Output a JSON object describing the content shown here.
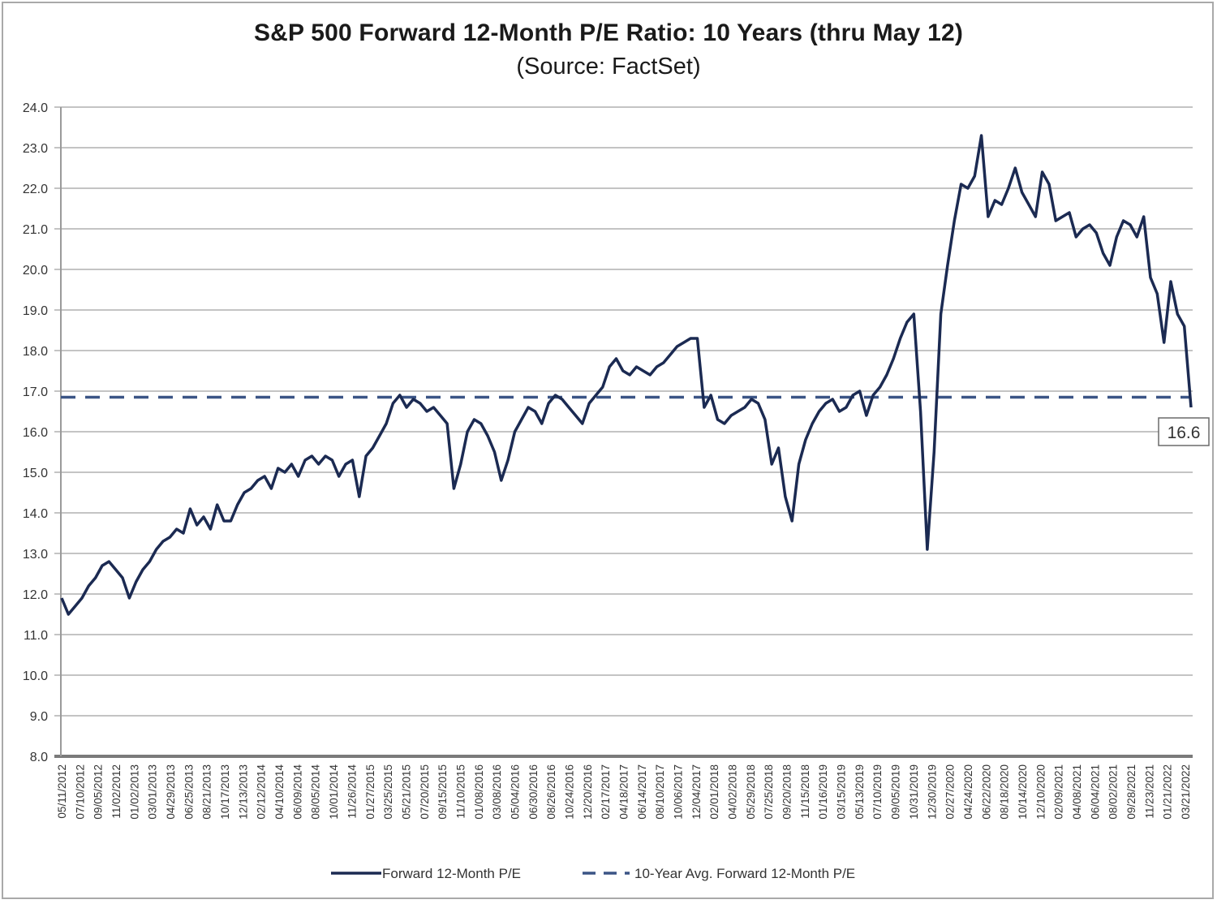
{
  "chart_data": {
    "type": "line",
    "title": "S&P 500 Forward 12-Month P/E Ratio: 10 Years (thru May 12)",
    "subtitle": "(Source: FactSet)",
    "xlabel": "",
    "ylabel": "",
    "ylim": [
      8.0,
      24.0
    ],
    "ytick_step": 1.0,
    "yticks": [
      "24.0",
      "23.0",
      "22.0",
      "21.0",
      "20.0",
      "19.0",
      "18.0",
      "17.0",
      "16.0",
      "15.0",
      "14.0",
      "13.0",
      "12.0",
      "11.0",
      "10.0",
      "9.0",
      "8.0"
    ],
    "grid": true,
    "legend_position": "bottom",
    "x_tick_labels": [
      "05/11/2012",
      "07/10/2012",
      "09/05/2012",
      "11/02/2012",
      "01/02/2013",
      "03/01/2013",
      "04/29/2013",
      "06/25/2013",
      "08/21/2013",
      "10/17/2013",
      "12/13/2013",
      "02/12/2014",
      "04/10/2014",
      "06/09/2014",
      "08/05/2014",
      "10/01/2014",
      "11/26/2014",
      "01/27/2015",
      "03/25/2015",
      "05/21/2015",
      "07/20/2015",
      "09/15/2015",
      "11/10/2015",
      "01/08/2016",
      "03/08/2016",
      "05/04/2016",
      "06/30/2016",
      "08/26/2016",
      "10/24/2016",
      "12/20/2016",
      "02/17/2017",
      "04/18/2017",
      "06/14/2017",
      "08/10/2017",
      "10/06/2017",
      "12/04/2017",
      "02/01/2018",
      "04/02/2018",
      "05/29/2018",
      "07/25/2018",
      "09/20/2018",
      "11/15/2018",
      "01/16/2019",
      "03/15/2019",
      "05/13/2019",
      "07/10/2019",
      "09/05/2019",
      "10/31/2019",
      "12/30/2019",
      "02/27/2020",
      "04/24/2020",
      "06/22/2020",
      "08/18/2020",
      "10/14/2020",
      "12/10/2020",
      "02/09/2021",
      "04/08/2021",
      "06/04/2021",
      "08/02/2021",
      "09/28/2021",
      "11/23/2021",
      "01/21/2022",
      "03/21/2022"
    ],
    "series": [
      {
        "name": "Forward 12-Month P/E",
        "style": "solid",
        "color": "#1b2a52",
        "x_range": [
          "05/11/2012",
          "05/12/2022"
        ],
        "values": [
          11.9,
          11.5,
          11.7,
          11.9,
          12.2,
          12.4,
          12.7,
          12.8,
          12.6,
          12.4,
          11.9,
          12.3,
          12.6,
          12.8,
          13.1,
          13.3,
          13.4,
          13.6,
          13.5,
          14.1,
          13.7,
          13.9,
          13.6,
          14.2,
          13.8,
          13.8,
          14.2,
          14.5,
          14.6,
          14.8,
          14.9,
          14.6,
          15.1,
          15.0,
          15.2,
          14.9,
          15.3,
          15.4,
          15.2,
          15.4,
          15.3,
          14.9,
          15.2,
          15.3,
          14.4,
          15.4,
          15.6,
          15.9,
          16.2,
          16.7,
          16.9,
          16.6,
          16.8,
          16.7,
          16.5,
          16.6,
          16.4,
          16.2,
          14.6,
          15.2,
          16.0,
          16.3,
          16.2,
          15.9,
          15.5,
          14.8,
          15.3,
          16.0,
          16.3,
          16.6,
          16.5,
          16.2,
          16.7,
          16.9,
          16.8,
          16.6,
          16.4,
          16.2,
          16.7,
          16.9,
          17.1,
          17.6,
          17.8,
          17.5,
          17.4,
          17.6,
          17.5,
          17.4,
          17.6,
          17.7,
          17.9,
          18.1,
          18.2,
          18.3,
          18.3,
          16.6,
          16.9,
          16.3,
          16.2,
          16.4,
          16.5,
          16.6,
          16.8,
          16.7,
          16.3,
          15.2,
          15.6,
          14.4,
          13.8,
          15.2,
          15.8,
          16.2,
          16.5,
          16.7,
          16.8,
          16.5,
          16.6,
          16.9,
          17.0,
          16.4,
          16.9,
          17.1,
          17.4,
          17.8,
          18.3,
          18.7,
          18.9,
          16.5,
          13.1,
          15.5,
          18.9,
          20.1,
          21.2,
          22.1,
          22.0,
          22.3,
          23.3,
          21.3,
          21.7,
          21.6,
          22.0,
          22.5,
          21.9,
          21.6,
          21.3,
          22.4,
          22.1,
          21.2,
          21.3,
          21.4,
          20.8,
          21.0,
          21.1,
          20.9,
          20.4,
          20.1,
          20.8,
          21.2,
          21.1,
          20.8,
          21.3,
          19.8,
          19.4,
          18.2,
          19.7,
          18.9,
          18.6,
          16.6
        ]
      },
      {
        "name": "10-Year Avg. Forward 12-Month P/E",
        "style": "dashed",
        "color": "#3b5586",
        "value": 16.85
      }
    ],
    "annotations": [
      {
        "text": "16.6",
        "target": "last-point"
      }
    ]
  }
}
